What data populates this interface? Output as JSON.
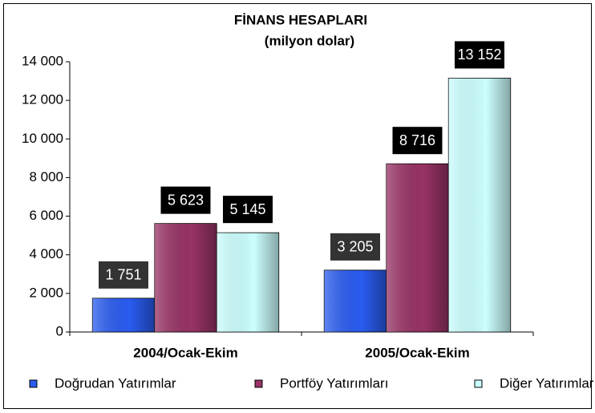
{
  "chart_data": {
    "type": "bar",
    "title": "FİNANS HESAPLARI",
    "subtitle": "(milyon dolar)",
    "categories": [
      "2004/Ocak-Ekim",
      "2005/Ocak-Ekim"
    ],
    "series": [
      {
        "name": "Doğrudan Yatırımlar",
        "color": "#2a5cf0",
        "values": [
          1751,
          3205
        ],
        "value_labels": [
          "1 751",
          "3 205"
        ]
      },
      {
        "name": "Portföy Yatırımları",
        "color": "#993366",
        "values": [
          5623,
          8716
        ],
        "value_labels": [
          "5 623",
          "8 716"
        ]
      },
      {
        "name": "Diğer Yatırımları",
        "color": "#ccffff",
        "values": [
          5145,
          13152
        ],
        "value_labels": [
          "5 145",
          "13 152"
        ]
      }
    ],
    "ylim": [
      0,
      14000
    ],
    "yticks": [
      0,
      {
        "value": 2000,
        "label": "2 000"
      },
      {
        "value": 4000,
        "label": "4 000"
      },
      {
        "value": 6000,
        "label": "6 000"
      },
      {
        "value": 8000,
        "label": "8 000"
      },
      {
        "value": 10000,
        "label": "10 000"
      },
      {
        "value": 12000,
        "label": "12 000"
      },
      {
        "value": 14000,
        "label": "14 000"
      }
    ],
    "grid": false,
    "legend": "bottom"
  }
}
